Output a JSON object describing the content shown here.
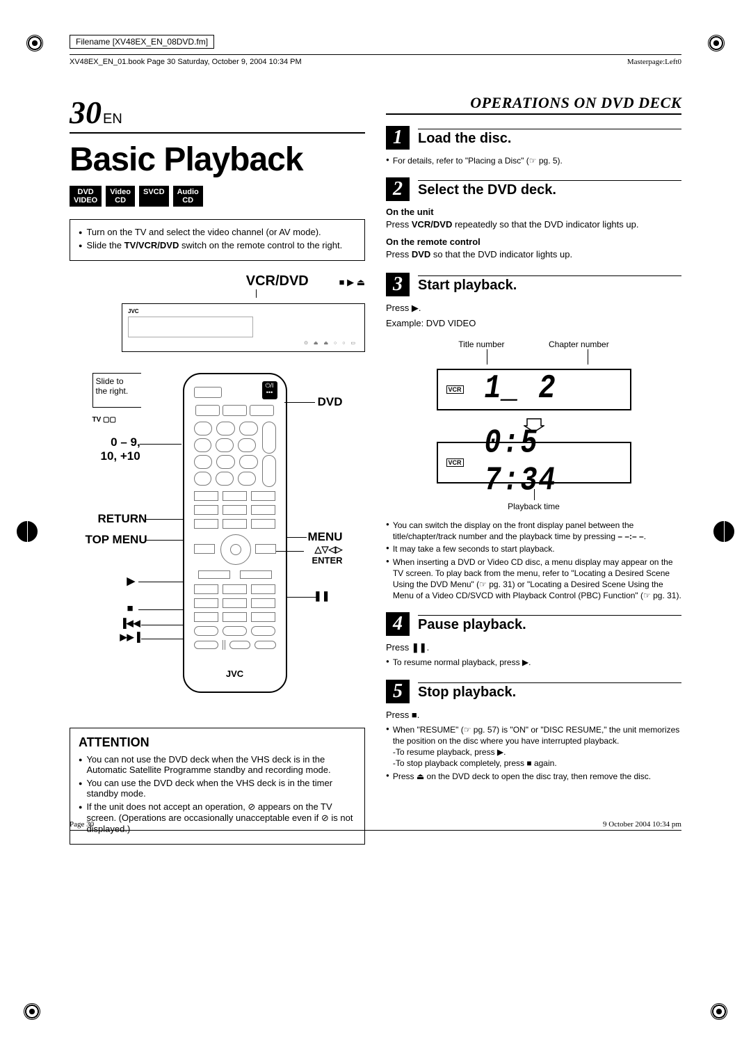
{
  "meta": {
    "filename": "Filename [XV48EX_EN_08DVD.fm]",
    "bookline": "XV48EX_EN_01.book  Page 30  Saturday, October 9, 2004  10:34 PM",
    "masterpage": "Masterpage:Left0"
  },
  "header": {
    "page_number": "30",
    "page_suffix": "EN",
    "section": "OPERATIONS ON DVD DECK"
  },
  "left": {
    "title": "Basic Playback",
    "badges": [
      "DVD VIDEO",
      "Video CD",
      "SVCD",
      "Audio CD"
    ],
    "prereq": [
      "Turn on the TV and select the video channel (or AV mode).",
      "Slide the <b>TV/VCR/DVD</b> switch on the remote control to the right."
    ],
    "vcr_label": "VCR/DVD",
    "remote": {
      "slide": "Slide to the right.",
      "tv": "TV",
      "dvd": "DVD",
      "nums": "0 – 9, 10, +10",
      "return": "RETURN",
      "topmenu": "TOP MENU",
      "menu": "MENU",
      "enter": "△▽◁▷ ENTER",
      "brand": "JVC",
      "play": "▶",
      "stop": "■",
      "pause": "❚❚",
      "prev": "▐◀◀",
      "next": "▶▶▐"
    },
    "attention": {
      "title": "ATTENTION",
      "items": [
        "You can not use the DVD deck when the VHS deck is in the Automatic Satellite Programme standby and recording mode.",
        "You can use the DVD deck when the VHS deck is in the timer standby mode.",
        "If the unit does not accept an operation, ⊘ appears on the TV screen. (Operations are occasionally unacceptable even if ⊘ is not displayed.)"
      ]
    }
  },
  "steps": [
    {
      "n": "1",
      "title": "Load the disc.",
      "body": [
        {
          "type": "bullet",
          "text": "For details, refer to \"Placing a Disc\" (☞ pg. 5)."
        }
      ]
    },
    {
      "n": "2",
      "title": "Select the DVD deck.",
      "body": [
        {
          "type": "bold",
          "text": "On the unit"
        },
        {
          "type": "p",
          "text": "Press <b>VCR/DVD</b> repeatedly so that the DVD indicator lights up."
        },
        {
          "type": "bold",
          "text": "On the remote control"
        },
        {
          "type": "p",
          "text": "Press <b>DVD</b> so that the DVD indicator lights up."
        }
      ]
    },
    {
      "n": "3",
      "title": "Start playback.",
      "body": [
        {
          "type": "p",
          "text": "Press ▶."
        },
        {
          "type": "p",
          "text": "Example: DVD VIDEO"
        }
      ],
      "display": {
        "title_label": "Title number",
        "chapter_label": "Chapter number",
        "line1": "1_   2",
        "line2": "0:5 7:34",
        "playback_label": "Playback time"
      },
      "notes": [
        "You can switch the display on the front display panel between the title/chapter/track number and the playback time by pressing <b>– –:– –</b>.",
        "It may take a few seconds to start playback.",
        "When inserting a DVD or Video CD disc, a menu display may appear on the TV screen. To play back from the menu, refer to \"Locating a Desired Scene Using the DVD Menu\" (☞ pg. 31) or \"Locating a Desired Scene Using the Menu of a Video CD/SVCD with Playback Control (PBC) Function\" (☞ pg. 31)."
      ]
    },
    {
      "n": "4",
      "title": "Pause playback.",
      "body": [
        {
          "type": "p",
          "text": "Press <b>❚❚</b>."
        },
        {
          "type": "bullet",
          "text": "To resume normal playback, press ▶."
        }
      ]
    },
    {
      "n": "5",
      "title": "Stop playback.",
      "body": [
        {
          "type": "p",
          "text": "Press ■."
        },
        {
          "type": "bullet",
          "text": "When \"RESUME\" (☞ pg. 57) is \"ON\" or \"DISC RESUME,\" the unit memorizes the position on the disc where you have interrupted playback.<br>-To resume playback, press ▶.<br>-To stop playback completely, press ■ again."
        },
        {
          "type": "bullet",
          "text": "Press ⏏ on the DVD deck to open the disc tray, then remove the disc."
        }
      ]
    }
  ],
  "footer": {
    "left": "Page 30",
    "right": "9 October 2004 10:34 pm"
  }
}
